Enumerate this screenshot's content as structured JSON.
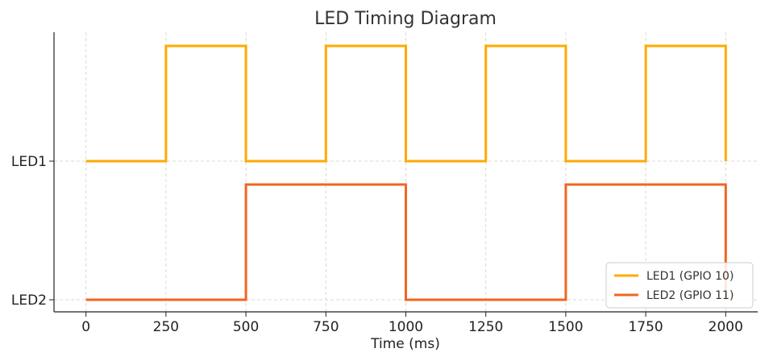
{
  "chart_data": {
    "type": "line",
    "step": true,
    "title": "LED Timing Diagram",
    "xlabel": "Time (ms)",
    "ylabel": "",
    "xlim": [
      -100,
      2100
    ],
    "xticks": [
      0,
      250,
      500,
      750,
      1000,
      1250,
      1500,
      1750,
      2000
    ],
    "yticks": [
      "LED1",
      "LED2"
    ],
    "grid": true,
    "legend_position": "bottom-right",
    "series": [
      {
        "name": "LED1 (GPIO 10)",
        "color": "#FFAA00",
        "row": "LED1",
        "x": [
          0,
          250,
          250,
          500,
          500,
          750,
          750,
          1000,
          1000,
          1250,
          1250,
          1500,
          1500,
          1750,
          1750,
          2000,
          2000
        ],
        "y": [
          0,
          0,
          1,
          1,
          0,
          0,
          1,
          1,
          0,
          0,
          1,
          1,
          0,
          0,
          1,
          1,
          0
        ]
      },
      {
        "name": "LED2 (GPIO 11)",
        "color": "#F26522",
        "row": "LED2",
        "x": [
          0,
          500,
          500,
          1000,
          1000,
          1500,
          1500,
          2000,
          2000
        ],
        "y": [
          0,
          0,
          1,
          1,
          0,
          0,
          1,
          1,
          0
        ]
      }
    ]
  }
}
